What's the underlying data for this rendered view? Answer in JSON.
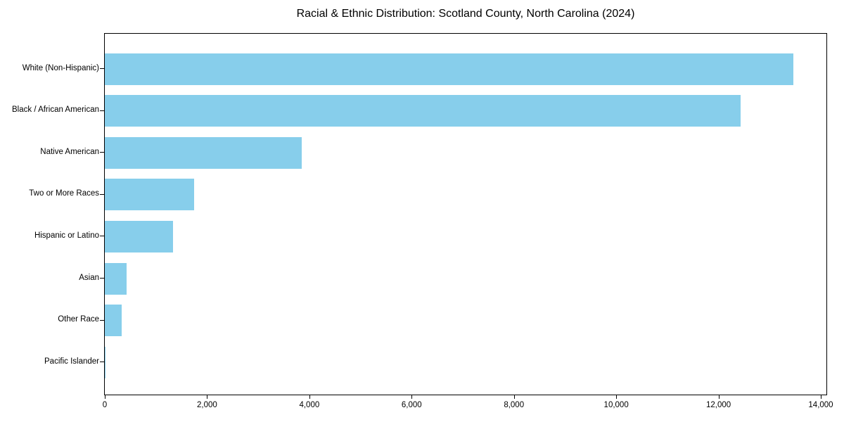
{
  "chart_data": {
    "type": "bar",
    "orientation": "horizontal",
    "title": "Racial & Ethnic Distribution: Scotland County, North Carolina (2024)",
    "categories": [
      "White (Non-Hispanic)",
      "Black / African American",
      "Native American",
      "Two or More Races",
      "Hispanic or Latino",
      "Asian",
      "Other Race",
      "Pacific Islander"
    ],
    "values": [
      13460,
      12430,
      3850,
      1740,
      1340,
      430,
      330,
      20
    ],
    "xlabel": "",
    "ylabel": "",
    "xlim": [
      0,
      14110
    ],
    "xticks": [
      0,
      2000,
      4000,
      6000,
      8000,
      10000,
      12000,
      14000
    ],
    "xtick_labels": [
      "0",
      "2,000",
      "4,000",
      "6,000",
      "8,000",
      "10,000",
      "12,000",
      "14,000"
    ],
    "bar_color": "#87CEEB",
    "background": "#ffffff",
    "grid": false,
    "legend": "none"
  }
}
